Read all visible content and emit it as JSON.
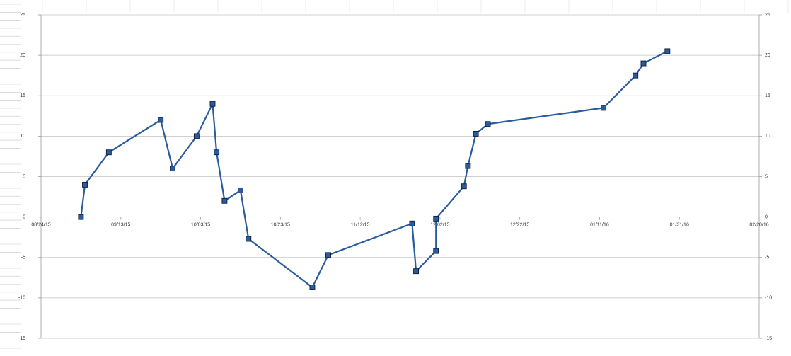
{
  "chart_data": {
    "type": "line",
    "x": [
      "09/03/15",
      "09/04/15",
      "09/10/15",
      "09/23/15",
      "09/26/15",
      "10/02/15",
      "10/06/15",
      "10/07/15",
      "10/09/15",
      "10/13/15",
      "10/15/15",
      "10/31/15",
      "11/04/15",
      "11/25/15",
      "11/26/15",
      "12/01/15",
      "12/01/15",
      "12/08/15",
      "12/09/15",
      "12/11/15",
      "12/14/15",
      "01/12/16",
      "01/20/16",
      "01/22/16",
      "01/28/16"
    ],
    "series": [
      {
        "color": "#2a5b9c",
        "values": [
          0,
          4,
          8,
          12,
          6,
          10,
          14,
          8,
          2,
          3.3,
          -2.7,
          -8.7,
          -4.7,
          -0.8,
          -6.7,
          -4.2,
          -0.2,
          3.8,
          6.3,
          10.3,
          11.5,
          13.5,
          17.5,
          19,
          20.5
        ]
      }
    ],
    "xlim": [
      "08/24/15",
      "02/20/16"
    ],
    "xticks": [
      "08/24/15",
      "09/13/15",
      "10/03/15",
      "10/23/15",
      "11/12/15",
      "12/02/15",
      "12/22/15",
      "01/11/16",
      "01/31/16",
      "02/20/16"
    ],
    "ylim": [
      -15,
      25
    ],
    "yticks": [
      -15,
      -10,
      -5,
      0,
      5,
      10,
      15,
      20,
      25
    ],
    "y2lim": [
      -15,
      25
    ],
    "y2ticks": [
      -15,
      -10,
      -5,
      0,
      5,
      10,
      15,
      20,
      25
    ],
    "grid": true
  }
}
